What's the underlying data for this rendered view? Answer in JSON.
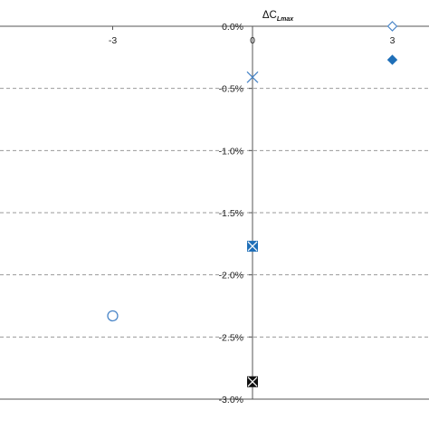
{
  "chart_data": {
    "type": "scatter",
    "title": "ΔC",
    "title_subscript": "Lmax",
    "x_ticks": [
      "-3",
      "0",
      "3"
    ],
    "y_ticks": [
      "0.0%",
      "-0.5%",
      "-1.0%",
      "-1.5%",
      "-2.0%",
      "-2.5%",
      "-3.0%"
    ],
    "xlim": [
      -5.4,
      3.35
    ],
    "ylim": [
      -3.0,
      0.0
    ],
    "grid": "horizontal dashed",
    "series": [
      {
        "marker": "circle-open",
        "color": "#4a86c8",
        "points": [
          [
            -3,
            -2.33
          ]
        ]
      },
      {
        "marker": "cross",
        "color": "#4a86c8",
        "points": [
          [
            0,
            -0.41
          ]
        ]
      },
      {
        "marker": "square-x-blue",
        "color": "#1f6fb8",
        "points": [
          [
            0,
            -1.77
          ]
        ]
      },
      {
        "marker": "square-x-black",
        "color": "#111111",
        "points": [
          [
            0,
            -2.86
          ]
        ]
      },
      {
        "marker": "diamond-open",
        "color": "#4a86c8",
        "points": [
          [
            3,
            0.0
          ]
        ]
      },
      {
        "marker": "diamond-filled",
        "color": "#1f6fb8",
        "points": [
          [
            3,
            -0.27
          ]
        ]
      }
    ]
  }
}
